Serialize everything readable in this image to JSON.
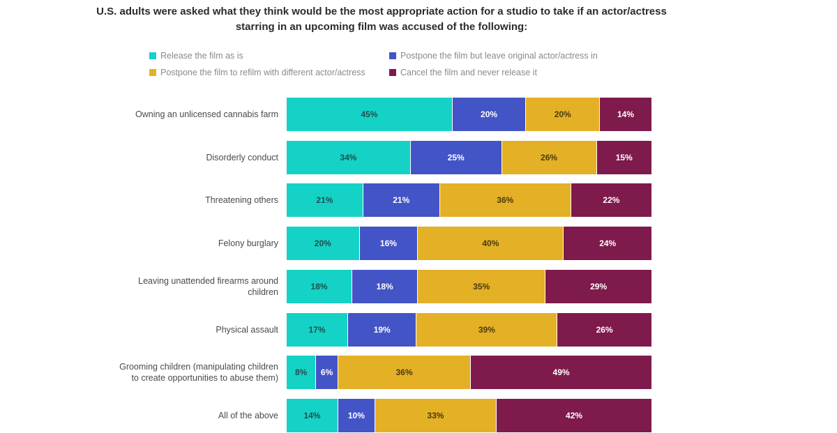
{
  "chart_data": {
    "type": "bar",
    "orientation": "horizontal-stacked",
    "title": "U.S. adults were asked what they think would be the most appropriate action for a studio to take if an actor/actress starring in an upcoming film was accused of the following:",
    "title_lines": [
      "U.S. adults were asked what they think would be the most appropriate action for a studio to take if an actor/actress",
      "starring in an upcoming film was accused of the following:"
    ],
    "xlabel": "",
    "ylabel": "",
    "legend_position": "top",
    "grid": false,
    "categories": [
      "Owning an unlicensed cannabis farm",
      "Disorderly conduct",
      "Threatening others",
      "Felony burglary",
      "Leaving unattended firearms around children",
      "Physical assault",
      "Grooming children (manipulating children to create opportunities to abuse them)",
      "All of the above"
    ],
    "category_label_lines": [
      [
        "Owning an unlicensed cannabis farm"
      ],
      [
        "Disorderly conduct"
      ],
      [
        "Threatening others"
      ],
      [
        "Felony burglary"
      ],
      [
        "Leaving unattended firearms around",
        "children"
      ],
      [
        "Physical assault"
      ],
      [
        "Grooming children (manipulating children",
        "to create opportunities to abuse them)"
      ],
      [
        "All of the above"
      ]
    ],
    "series": [
      {
        "name": "Release the film as is",
        "color": "#14d2c6",
        "label_color": "#1f4f4c",
        "values": [
          45,
          34,
          21,
          20,
          18,
          17,
          8,
          14
        ]
      },
      {
        "name": "Postpone the film but leave original actor/actress in",
        "color": "#4354c6",
        "label_color": "#ffffff",
        "values": [
          20,
          25,
          21,
          16,
          18,
          19,
          6,
          10
        ]
      },
      {
        "name": "Postpone the film to refilm with different actor/actress",
        "color": "#e3b026",
        "label_color": "#4a3a10",
        "values": [
          20,
          26,
          36,
          40,
          35,
          39,
          36,
          33
        ]
      },
      {
        "name": "Cancel the film and never release it",
        "color": "#7f1a4c",
        "label_color": "#ffffff",
        "values": [
          14,
          15,
          22,
          24,
          29,
          26,
          49,
          42
        ]
      }
    ],
    "value_suffix": "%"
  }
}
